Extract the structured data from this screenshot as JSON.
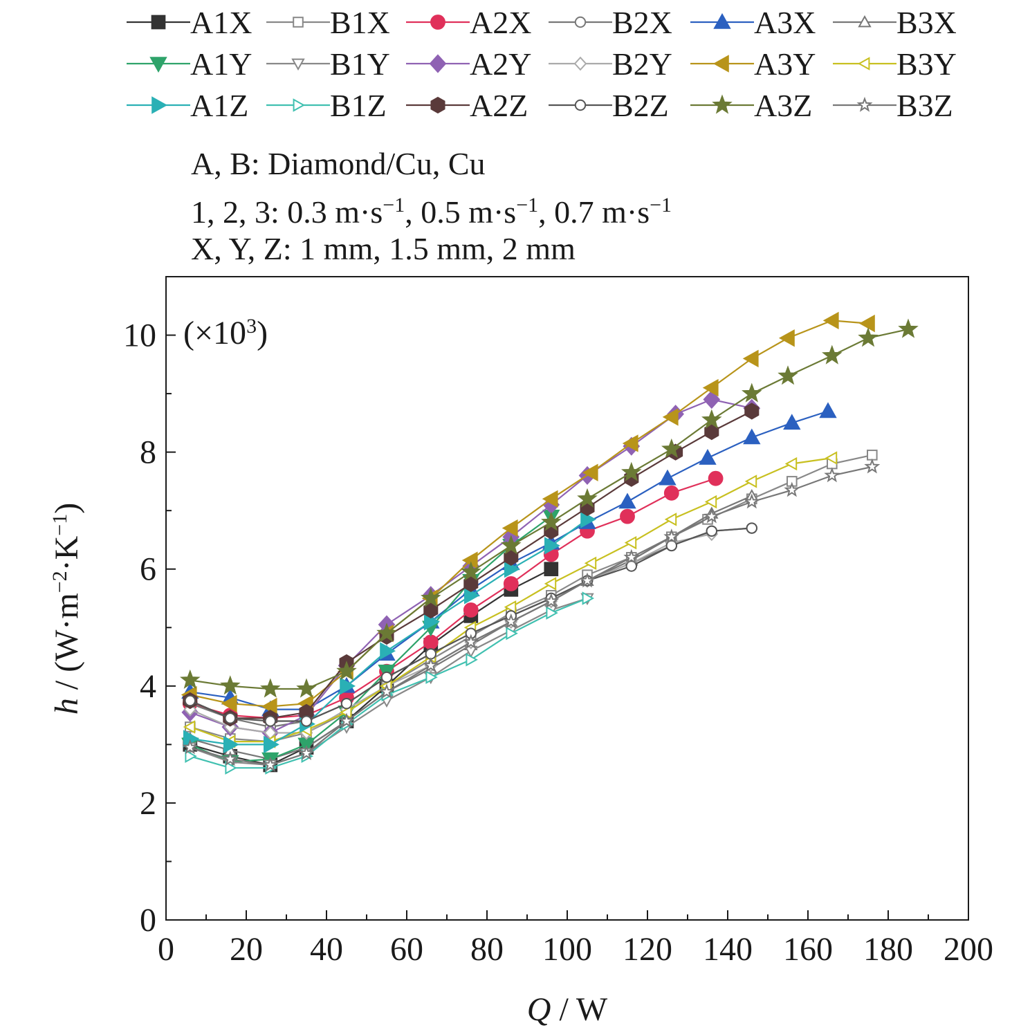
{
  "chart_data": {
    "type": "line",
    "xlabel_var": "Q",
    "xlabel_unit": " / W",
    "ylabel_var": "h",
    "ylabel_rest": " / (W·m",
    "ylabel_exp1": "−2",
    "ylabel_mid": "·K",
    "ylabel_exp2": "−1",
    "ylabel_end": ")",
    "xlim": [
      0,
      200
    ],
    "ylim": [
      0,
      11
    ],
    "xticks": [
      "0",
      "20",
      "40",
      "60",
      "80",
      "100",
      "120",
      "140",
      "160",
      "180",
      "200"
    ],
    "yticks": [
      "0",
      "2",
      "4",
      "6",
      "8",
      "10"
    ],
    "multiplier_pre": "(×10",
    "multiplier_exp": "3",
    "multiplier_post": ")",
    "notes": {
      "line1": "A, B: Diamond/Cu, Cu",
      "line2_parts": [
        "1, 2, 3: 0.3 m·s",
        "−1",
        ", 0.5 m·s",
        "−1",
        ", 0.7 m·s",
        "−1"
      ],
      "line3": "X, Y, Z: 1 mm, 1.5 mm, 2 mm"
    },
    "legend_position": "top",
    "grid": false,
    "series": [
      {
        "name": "A1X",
        "color": "#333333",
        "marker": "square",
        "filled": true,
        "x": [
          6,
          16,
          26,
          35,
          45,
          55,
          66,
          76,
          86,
          96
        ],
        "y": [
          3.0,
          2.8,
          2.65,
          2.95,
          3.4,
          4.0,
          4.7,
          5.2,
          5.65,
          6.0
        ]
      },
      {
        "name": "B1X",
        "color": "#888888",
        "marker": "square",
        "filled": false,
        "x": [
          6,
          16,
          26,
          35,
          45,
          55,
          66,
          76,
          86,
          96,
          105,
          116,
          126,
          135,
          146,
          156,
          166,
          176
        ],
        "y": [
          3.3,
          3.1,
          3.05,
          3.2,
          3.55,
          4.0,
          4.45,
          4.85,
          5.25,
          5.55,
          5.9,
          6.2,
          6.55,
          6.85,
          7.2,
          7.5,
          7.8,
          7.95
        ]
      },
      {
        "name": "A2X",
        "color": "#e0305a",
        "marker": "circle",
        "filled": true,
        "x": [
          6,
          16,
          26,
          35,
          45,
          55,
          66,
          76,
          86,
          96,
          105,
          115,
          126,
          137
        ],
        "y": [
          3.7,
          3.5,
          3.45,
          3.5,
          3.8,
          4.25,
          4.75,
          5.3,
          5.75,
          6.25,
          6.65,
          6.9,
          7.3,
          7.55
        ]
      },
      {
        "name": "B2X",
        "color": "#777777",
        "marker": "circle",
        "filled": false,
        "x": [
          6,
          16,
          26,
          35,
          45,
          55,
          66,
          76,
          86,
          96,
          105,
          116,
          126,
          136,
          146
        ],
        "y": [
          3.7,
          3.45,
          3.3,
          3.4,
          3.7,
          4.15,
          4.55,
          4.9,
          5.2,
          5.5,
          5.8,
          6.1,
          6.4,
          6.65,
          6.7
        ]
      },
      {
        "name": "A3X",
        "color": "#2b60c0",
        "marker": "triangle-up",
        "filled": true,
        "x": [
          6,
          16,
          26,
          35,
          45,
          55,
          66,
          76,
          86,
          96,
          105,
          115,
          125,
          135,
          146,
          156,
          165
        ],
        "y": [
          3.9,
          3.8,
          3.6,
          3.6,
          4.0,
          4.55,
          5.1,
          5.65,
          6.1,
          6.45,
          6.8,
          7.15,
          7.55,
          7.9,
          8.25,
          8.5,
          8.7
        ]
      },
      {
        "name": "B3X",
        "color": "#777777",
        "marker": "triangle-up",
        "filled": false,
        "x": [
          6,
          16,
          26,
          35,
          45,
          55,
          66,
          76,
          86,
          96,
          105,
          116,
          126,
          136,
          146
        ],
        "y": [
          3.1,
          2.9,
          2.75,
          2.95,
          3.4,
          3.9,
          4.3,
          4.7,
          5.1,
          5.45,
          5.8,
          6.15,
          6.55,
          6.95,
          7.25
        ]
      },
      {
        "name": "A1Y",
        "color": "#2ea36a",
        "marker": "triangle-down",
        "filled": true,
        "x": [
          6,
          16,
          26,
          35,
          45,
          55,
          66,
          76,
          86,
          96
        ],
        "y": [
          3.0,
          2.7,
          2.75,
          3.0,
          3.55,
          4.25,
          5.0,
          5.8,
          6.4,
          6.9
        ]
      },
      {
        "name": "B1Y",
        "color": "#888888",
        "marker": "triangle-down",
        "filled": false,
        "x": [
          6,
          16,
          26,
          35,
          45,
          55,
          66,
          76,
          86,
          96,
          105
        ],
        "y": [
          2.95,
          2.7,
          2.65,
          2.85,
          3.3,
          3.75,
          4.15,
          4.6,
          4.95,
          5.3,
          5.5
        ]
      },
      {
        "name": "A2Y",
        "color": "#8f62b3",
        "marker": "diamond",
        "filled": true,
        "x": [
          6,
          16,
          26,
          35,
          45,
          55,
          66,
          76,
          86,
          96,
          105,
          116,
          127,
          136,
          146
        ],
        "y": [
          3.55,
          3.3,
          3.2,
          3.5,
          4.35,
          5.05,
          5.55,
          6.05,
          6.55,
          7.1,
          7.6,
          8.1,
          8.65,
          8.9,
          8.75
        ]
      },
      {
        "name": "B2Y",
        "color": "#aaaaaa",
        "marker": "diamond",
        "filled": false,
        "x": [
          6,
          16,
          26,
          35,
          45,
          55,
          66,
          76,
          86,
          96,
          105,
          116,
          126,
          136
        ],
        "y": [
          3.6,
          3.3,
          3.2,
          3.2,
          3.6,
          4.0,
          4.35,
          4.75,
          5.1,
          5.45,
          5.8,
          6.1,
          6.45,
          6.6
        ]
      },
      {
        "name": "A3Y",
        "color": "#b8941a",
        "marker": "triangle-left",
        "filled": true,
        "x": [
          6,
          16,
          26,
          35,
          45,
          55,
          66,
          76,
          86,
          96,
          106,
          116,
          126,
          136,
          146,
          155,
          166,
          175
        ],
        "y": [
          3.85,
          3.7,
          3.65,
          3.7,
          4.25,
          4.9,
          5.5,
          6.15,
          6.7,
          7.2,
          7.65,
          8.15,
          8.6,
          9.1,
          9.6,
          9.95,
          10.25,
          10.2
        ]
      },
      {
        "name": "B3Y",
        "color": "#c8c020",
        "marker": "triangle-left",
        "filled": false,
        "x": [
          6,
          16,
          26,
          35,
          45,
          55,
          66,
          76,
          86,
          96,
          106,
          116,
          126,
          136,
          146,
          156,
          166
        ],
        "y": [
          3.3,
          3.05,
          3.05,
          3.25,
          3.55,
          4.0,
          4.5,
          5.0,
          5.35,
          5.75,
          6.1,
          6.45,
          6.85,
          7.15,
          7.5,
          7.8,
          7.9
        ]
      },
      {
        "name": "A1Z",
        "color": "#2ab0b5",
        "marker": "triangle-right",
        "filled": true,
        "x": [
          6,
          16,
          26,
          35,
          45,
          55,
          66,
          76,
          86,
          96,
          105
        ],
        "y": [
          3.1,
          3.0,
          3.0,
          3.35,
          4.0,
          4.6,
          5.1,
          5.55,
          6.0,
          6.4,
          6.85
        ]
      },
      {
        "name": "B1Z",
        "color": "#40c0b0",
        "marker": "triangle-right",
        "filled": false,
        "x": [
          6,
          16,
          26,
          35,
          45,
          55,
          66,
          76,
          86,
          96,
          105
        ],
        "y": [
          2.8,
          2.6,
          2.6,
          2.8,
          3.35,
          3.85,
          4.15,
          4.45,
          4.9,
          5.25,
          5.5
        ]
      },
      {
        "name": "A2Z",
        "color": "#5a3a3a",
        "marker": "hexagon",
        "filled": true,
        "x": [
          6,
          16,
          26,
          35,
          45,
          55,
          66,
          76,
          86,
          96,
          105,
          116,
          127,
          136,
          146
        ],
        "y": [
          3.75,
          3.45,
          3.45,
          3.55,
          4.4,
          4.85,
          5.3,
          5.75,
          6.2,
          6.65,
          7.05,
          7.55,
          8.0,
          8.35,
          8.7
        ]
      },
      {
        "name": "B2Z",
        "color": "#555555",
        "marker": "circle",
        "filled": false,
        "x": [
          6,
          16,
          26,
          35,
          45,
          55,
          66,
          76,
          86,
          96,
          105,
          116,
          126,
          136,
          146
        ],
        "y": [
          3.75,
          3.45,
          3.4,
          3.4,
          3.7,
          4.15,
          4.55,
          4.9,
          5.2,
          5.5,
          5.8,
          6.05,
          6.4,
          6.65,
          6.7
        ]
      },
      {
        "name": "A3Z",
        "color": "#6b7a35",
        "marker": "star",
        "filled": true,
        "x": [
          6,
          16,
          26,
          35,
          45,
          55,
          66,
          76,
          86,
          96,
          105,
          116,
          126,
          136,
          146,
          155,
          166,
          175,
          185
        ],
        "y": [
          4.1,
          4.0,
          3.95,
          3.95,
          4.25,
          4.9,
          5.5,
          5.95,
          6.4,
          6.8,
          7.2,
          7.65,
          8.05,
          8.55,
          9.0,
          9.3,
          9.65,
          9.95,
          10.1
        ]
      },
      {
        "name": "B3Z",
        "color": "#777777",
        "marker": "star",
        "filled": false,
        "x": [
          6,
          16,
          26,
          35,
          45,
          55,
          66,
          76,
          86,
          96,
          105,
          116,
          126,
          136,
          146,
          156,
          166,
          176
        ],
        "y": [
          2.95,
          2.75,
          2.65,
          2.85,
          3.4,
          3.9,
          4.35,
          4.75,
          5.1,
          5.45,
          5.8,
          6.2,
          6.55,
          6.9,
          7.15,
          7.35,
          7.6,
          7.75
        ]
      }
    ]
  }
}
